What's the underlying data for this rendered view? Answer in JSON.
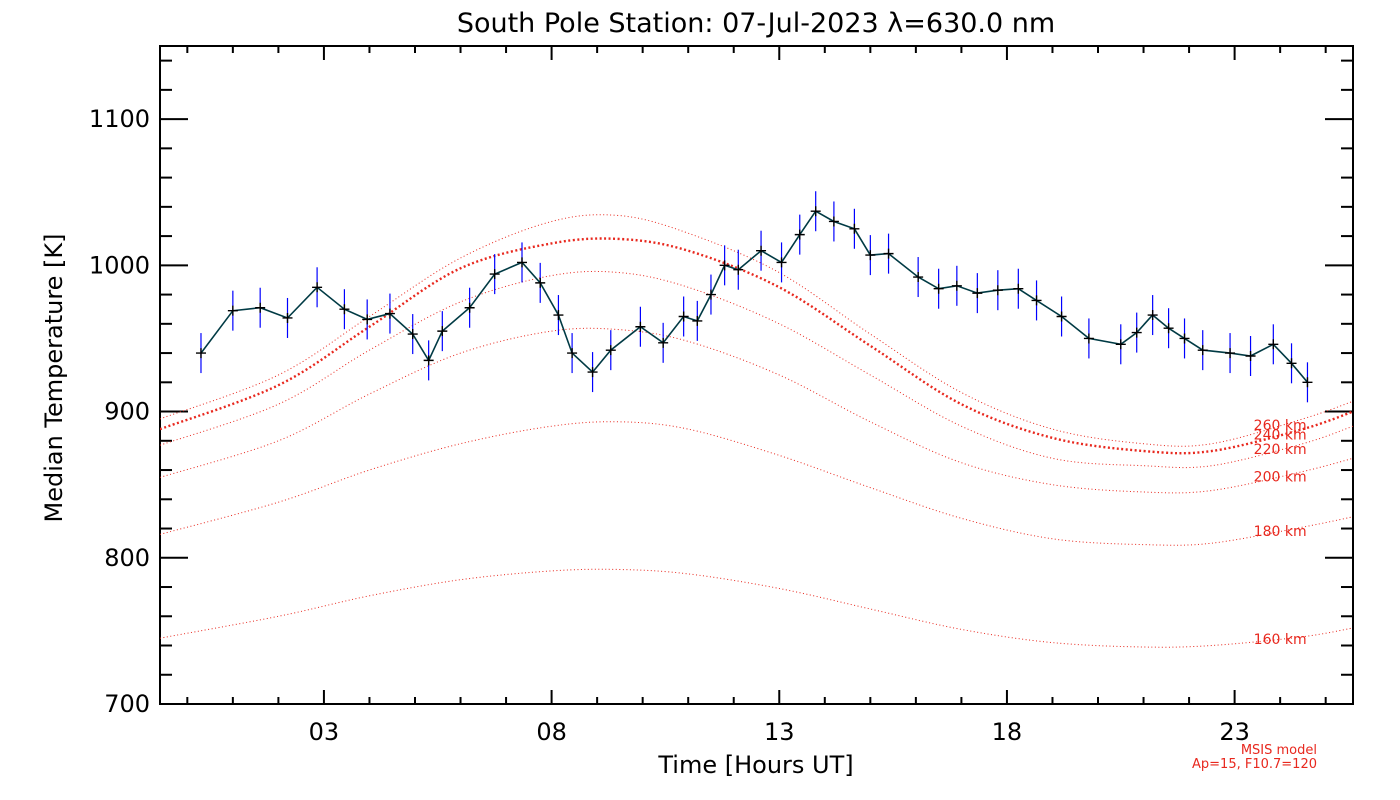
{
  "chart_data": {
    "type": "line",
    "title": "South Pole Station: 07-Jul-2023 λ=630.0 nm",
    "xlabel": "Time [Hours UT]",
    "ylabel": "Median Temperature [K]",
    "xlim": [
      -0.6,
      25.6
    ],
    "ylim": [
      700,
      1150
    ],
    "x_ticks": [
      3,
      8,
      13,
      18,
      23
    ],
    "x_tick_labels": [
      "03",
      "08",
      "13",
      "18",
      "23"
    ],
    "y_ticks": [
      700,
      800,
      900,
      1000,
      1100
    ],
    "y_tick_labels": [
      "700",
      "800",
      "900",
      "1000",
      "1100"
    ],
    "colors": {
      "measurement_line": "#003a44",
      "error_bars": "#0000ff",
      "markers": "#000000",
      "model": "#e8281e",
      "axes": "#000000"
    },
    "measurement": {
      "x": [
        0.3,
        1.0,
        1.6,
        2.2,
        2.85,
        3.45,
        3.95,
        4.45,
        4.95,
        5.3,
        5.6,
        6.2,
        6.75,
        7.35,
        7.75,
        8.15,
        8.45,
        8.9,
        9.3,
        9.95,
        10.45,
        10.9,
        11.2,
        11.5,
        11.8,
        12.1,
        12.6,
        13.05,
        13.45,
        13.8,
        14.2,
        14.65,
        15.0,
        15.4,
        16.05,
        16.5,
        16.9,
        17.35,
        17.8,
        18.25,
        18.65,
        19.2,
        19.8,
        20.5,
        20.85,
        21.2,
        21.55,
        21.9,
        22.3,
        22.9,
        23.35,
        23.85,
        24.25,
        24.6
      ],
      "y": [
        940,
        969,
        971,
        964,
        985,
        970,
        963,
        967,
        953,
        935,
        955,
        971,
        994,
        1002,
        988,
        966,
        940,
        927,
        942,
        958,
        947,
        965,
        962,
        980,
        1000,
        997,
        1010,
        1002,
        1021,
        1037,
        1030,
        1025,
        1007,
        1008,
        992,
        984,
        986,
        981,
        983,
        984,
        976,
        965,
        950,
        946,
        954,
        966,
        957,
        950,
        942,
        940,
        938,
        946,
        933,
        920
      ]
    },
    "model": {
      "name": "MSIS model",
      "params": "Ap=15, F10.7=120",
      "curves": [
        {
          "label": "260 km",
          "x": [
            -0.6,
            2,
            4,
            6,
            8,
            9.5,
            11,
            13,
            15,
            17,
            19,
            21,
            22.5,
            24.5,
            25.6
          ],
          "y": [
            895,
            925,
            965,
            1005,
            1030,
            1034,
            1022,
            995,
            953,
            913,
            888,
            878,
            878,
            895,
            907
          ]
        },
        {
          "label": "240 km",
          "x": [
            -0.6,
            2,
            4,
            6,
            8,
            9.5,
            11,
            13,
            15,
            17,
            19,
            21,
            22.5,
            24.5,
            25.6
          ],
          "y": [
            888,
            918,
            958,
            998,
            1015,
            1018,
            1010,
            985,
            945,
            905,
            882,
            873,
            873,
            888,
            900
          ]
        },
        {
          "label": "220 km",
          "x": [
            -0.6,
            2,
            4,
            6,
            8,
            9.5,
            11,
            13,
            15,
            17,
            19,
            21,
            22.5,
            24.5,
            25.6
          ],
          "y": [
            877,
            905,
            942,
            975,
            993,
            995,
            985,
            960,
            925,
            890,
            868,
            863,
            863,
            878,
            890
          ]
        },
        {
          "label": "200 km",
          "x": [
            -0.6,
            2,
            4,
            6,
            8,
            9.5,
            11,
            13,
            15,
            17,
            19,
            21,
            22.5,
            24.5,
            25.6
          ],
          "y": [
            855,
            880,
            912,
            940,
            955,
            956,
            948,
            925,
            893,
            865,
            850,
            845,
            846,
            859,
            868
          ]
        },
        {
          "label": "180 km",
          "x": [
            -0.6,
            2,
            4,
            6,
            8,
            9.5,
            11,
            13,
            15,
            17,
            19,
            21,
            22.5,
            24.5,
            25.6
          ],
          "y": [
            816,
            838,
            860,
            878,
            890,
            893,
            888,
            870,
            848,
            827,
            813,
            809,
            810,
            821,
            828
          ]
        },
        {
          "label": "160 km",
          "x": [
            -0.6,
            2,
            4,
            6,
            8,
            9.5,
            11,
            13,
            15,
            17,
            19,
            21,
            22.5,
            24.5,
            25.6
          ],
          "y": [
            745,
            760,
            774,
            785,
            791,
            792,
            789,
            779,
            765,
            751,
            742,
            739,
            740,
            746,
            752
          ]
        }
      ]
    }
  }
}
